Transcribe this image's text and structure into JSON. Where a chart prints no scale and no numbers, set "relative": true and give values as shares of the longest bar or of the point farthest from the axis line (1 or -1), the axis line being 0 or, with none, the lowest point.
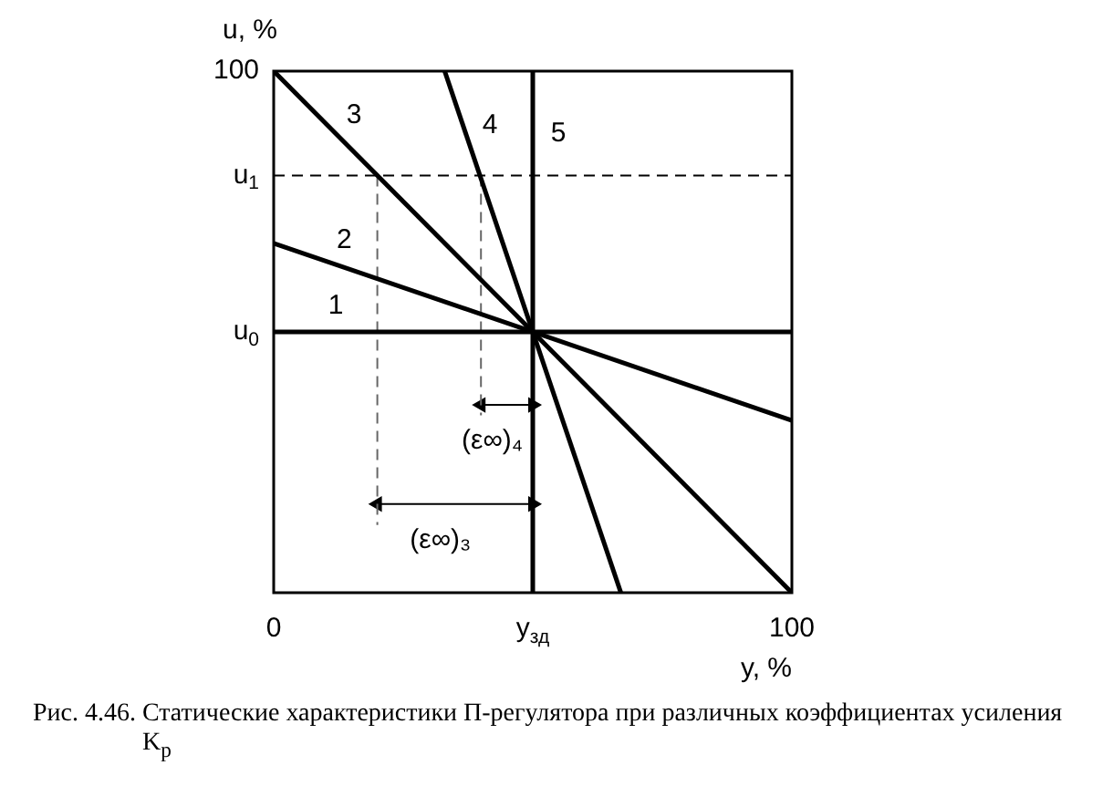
{
  "chart_data": {
    "type": "line",
    "relative": true,
    "xlabel": "y, %",
    "ylabel": "u, %",
    "x": [
      0,
      100
    ],
    "xlim": [
      0,
      100
    ],
    "xticks": [
      0,
      {
        "value": 50,
        "label": "y$_{зд}$"
      },
      100
    ],
    "series": [
      {
        "name": "1",
        "color": "#000000",
        "values": [
          0.5,
          0.5
        ]
      },
      {
        "name": "2",
        "color": "#000000",
        "values": [
          0.67,
          0.33
        ]
      },
      {
        "name": "3",
        "color": "#000000",
        "values": [
          1,
          0
        ]
      },
      {
        "name": "4",
        "color": "#000000",
        "x": [
          33,
          67
        ],
        "values": [
          1,
          0
        ]
      },
      {
        "name": "5",
        "color": "#000000",
        "x": [
          50,
          50
        ],
        "values": [
          0,
          1
        ]
      },
      {
        "color": "#666666",
        "x": [
          20,
          20
        ],
        "values": [
          0.8,
          0.13
        ],
        "line_style": "dashed"
      },
      {
        "color": "#666666",
        "x": [
          40,
          40
        ],
        "values": [
          0.8,
          0.34
        ],
        "line_style": "dashed"
      },
      {
        "color": "#000000",
        "x": [
          40,
          50
        ],
        "values": [
          0.36,
          0.36
        ],
        "marker": "triangle"
      },
      {
        "color": "#000000",
        "x": [
          20,
          50
        ],
        "values": [
          0.17,
          0.17
        ],
        "marker": "triangle"
      }
    ],
    "ref_lines": [
      {
        "axis": "y",
        "value": 0.8,
        "label": "u$_{1}$",
        "color": "#000000",
        "line_style": "dashed"
      }
    ],
    "annotations": [
      {
        "text": "100",
        "x": 0,
        "y": 1
      },
      {
        "text": "u$_{0}$",
        "x": 0,
        "y": 0.5
      },
      {
        "text": "(ε∞)₄",
        "x": 45,
        "y": 0.36
      },
      {
        "text": "(ε∞)₃",
        "x": 35,
        "y": 0.17
      },
      "Рис. 4.46. Статические характеристики П-регулятора при различных коэффициентах усиления K$_{р}$"
    ],
    "legend": false
  }
}
